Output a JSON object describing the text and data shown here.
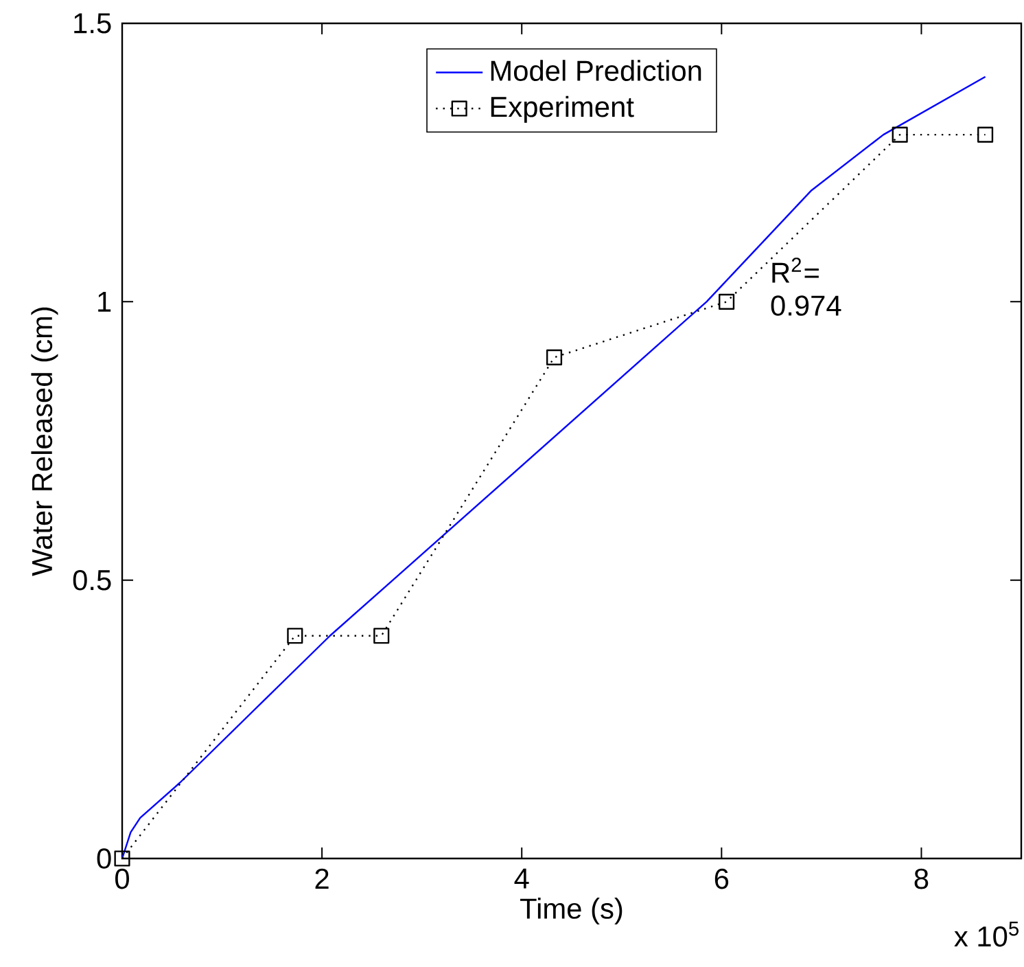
{
  "chart_data": {
    "type": "line",
    "xlabel": "Time (s)",
    "ylabel": "Water Released (cm)",
    "xlim": [
      0,
      9
    ],
    "ylim": [
      0,
      1.5
    ],
    "xticks": [
      0,
      2,
      4,
      6,
      8
    ],
    "yticks": [
      0,
      0.5,
      1,
      1.5
    ],
    "grid": false,
    "legend": "top",
    "annotations": [
      "x 10$^{5}$",
      "R$^{2}$= 0.974"
    ],
    "series": [
      {
        "name": "Model Prediction",
        "color": "#0000ff",
        "marker": "none",
        "line_style": "solid",
        "x": [
          0,
          0.085,
          0.18,
          0.577,
          0.72,
          2.08,
          2.71,
          5.85,
          6.9,
          7.62,
          8.64
        ],
        "values": [
          0,
          0.047,
          0.073,
          0.136,
          0.161,
          0.4,
          0.5,
          1.0,
          1.2,
          1.3,
          1.404
        ]
      },
      {
        "name": "Experiment",
        "color": "#000000",
        "marker": "square",
        "line_style": "dotted",
        "x": [
          0,
          1.73,
          2.595,
          4.325,
          6.05,
          7.785,
          8.64
        ],
        "values": [
          0,
          0.4,
          0.4,
          0.9,
          1.0,
          1.3,
          1.3
        ]
      }
    ]
  }
}
